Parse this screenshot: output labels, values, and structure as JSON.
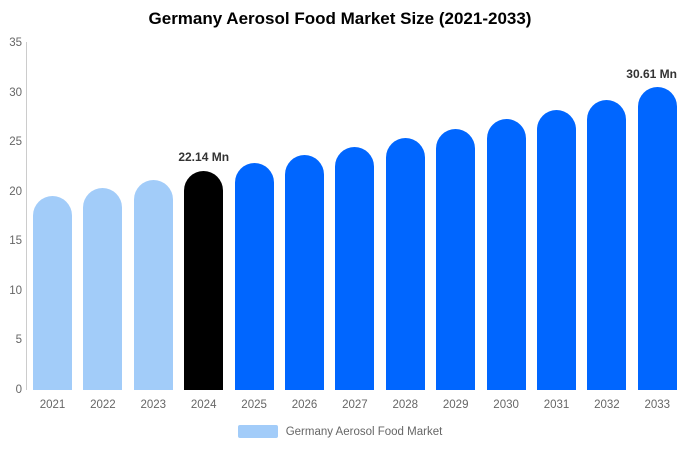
{
  "title": {
    "text": "Germany Aerosol Food Market Size (2021-2033)"
  },
  "legend": {
    "label": "Germany Aerosol Food Market",
    "swatch_color": "#A2CCF9"
  },
  "colors": {
    "historical_bar": "#A2CCF9",
    "base_year_bar": "#000000",
    "forecast_bar": "#0066FF",
    "axis_line": "#cccccc",
    "tick_text": "#666666",
    "annotation_text": "#333333",
    "title_text": "#000000"
  },
  "chart_data": {
    "type": "bar",
    "title": "Germany Aerosol Food Market Size (2021-2033)",
    "categories": [
      "2021",
      "2022",
      "2023",
      "2024",
      "2025",
      "2026",
      "2027",
      "2028",
      "2029",
      "2030",
      "2031",
      "2032",
      "2033"
    ],
    "values": [
      19.6,
      20.4,
      21.2,
      22.14,
      22.9,
      23.7,
      24.5,
      25.4,
      26.3,
      27.3,
      28.2,
      29.3,
      30.61
    ],
    "bar_colors": [
      "#A2CCF9",
      "#A2CCF9",
      "#A2CCF9",
      "#000000",
      "#0066FF",
      "#0066FF",
      "#0066FF",
      "#0066FF",
      "#0066FF",
      "#0066FF",
      "#0066FF",
      "#0066FF",
      "#0066FF"
    ],
    "xlabel": "",
    "ylabel": "",
    "ylim": [
      0,
      35
    ],
    "yticks": [
      0,
      5,
      10,
      15,
      20,
      25,
      30,
      35
    ],
    "grid": false,
    "legend_position": "bottom",
    "legend_entries": [
      "Germany Aerosol Food Market"
    ],
    "annotations": [
      {
        "category": "2024",
        "text": "22.14 Mn"
      },
      {
        "category": "2033",
        "text": "30.61 Mn"
      }
    ]
  }
}
